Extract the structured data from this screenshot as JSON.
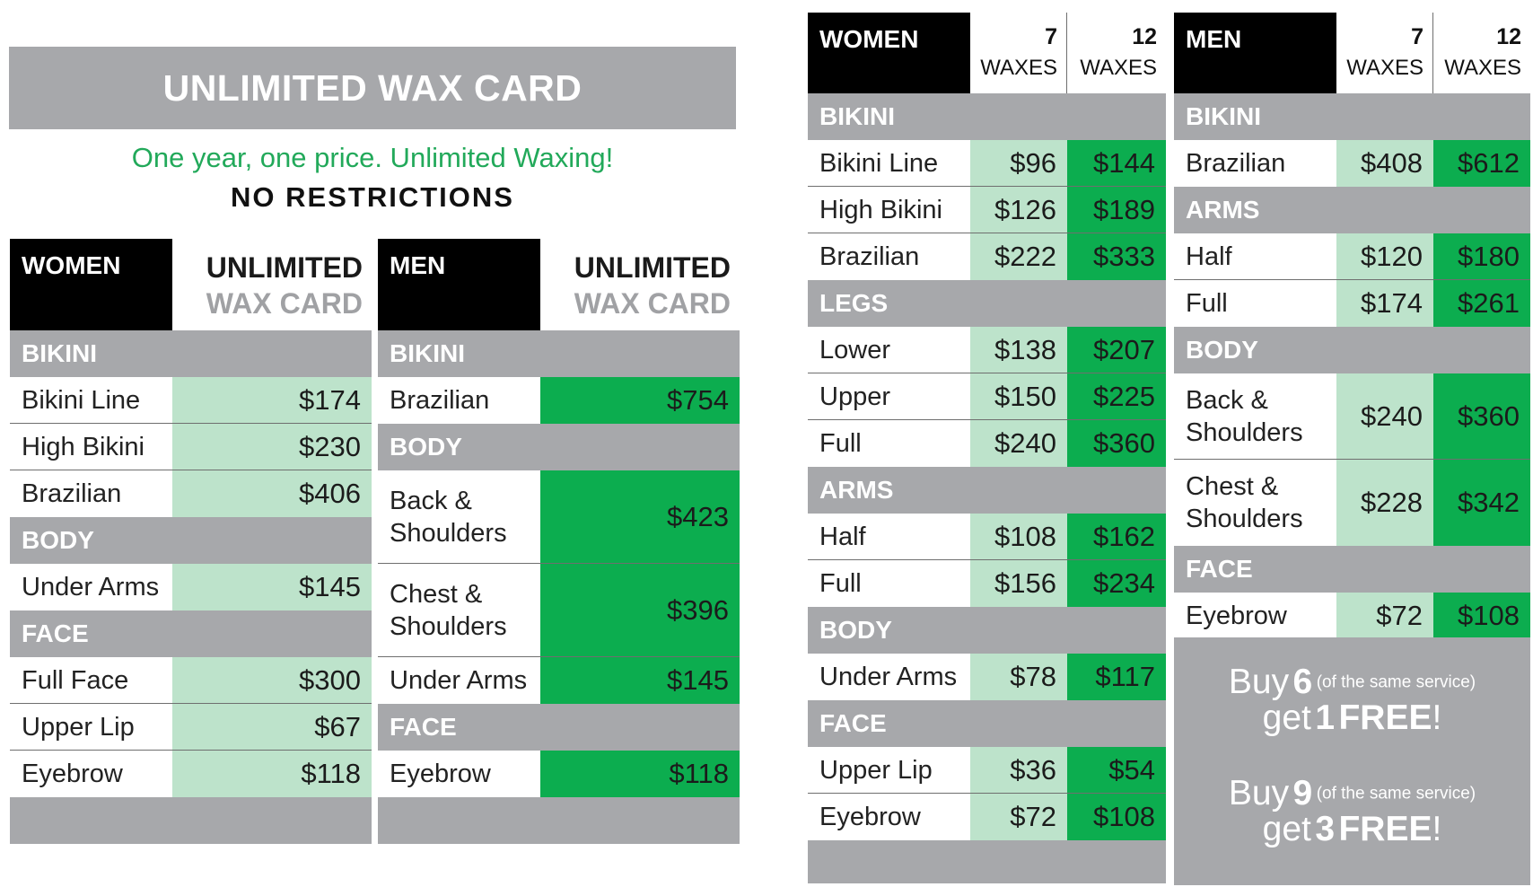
{
  "unlimited": {
    "banner": "UNLIMITED WAX CARD",
    "tagline": "One year, one price. Unlimited Waxing!",
    "no_restrictions": "NO RESTRICTIONS",
    "women": {
      "header": "WOMEN",
      "col_title_1": "UNLIMITED",
      "col_title_2": "WAX CARD",
      "sections": [
        {
          "name": "BIKINI",
          "items": [
            {
              "label": "Bikini Line",
              "price": "$174"
            },
            {
              "label": "High Bikini",
              "price": "$230"
            },
            {
              "label": "Brazilian",
              "price": "$406"
            }
          ]
        },
        {
          "name": "BODY",
          "items": [
            {
              "label": "Under Arms",
              "price": "$145"
            }
          ]
        },
        {
          "name": "FACE",
          "items": [
            {
              "label": "Full Face",
              "price": "$300"
            },
            {
              "label": "Upper Lip",
              "price": "$67"
            },
            {
              "label": "Eyebrow",
              "price": "$118"
            }
          ]
        }
      ]
    },
    "men": {
      "header": "MEN",
      "col_title_1": "UNLIMITED",
      "col_title_2": "WAX CARD",
      "sections": [
        {
          "name": "BIKINI",
          "items": [
            {
              "label": "Brazilian",
              "price": "$754"
            }
          ]
        },
        {
          "name": "BODY",
          "items": [
            {
              "label": "Back &",
              "label2": "Shoulders",
              "price": "$423"
            },
            {
              "label": "Chest &",
              "label2": "Shoulders",
              "price": "$396"
            },
            {
              "label": "Under Arms",
              "price": "$145"
            }
          ]
        },
        {
          "name": "FACE",
          "items": [
            {
              "label": "Eyebrow",
              "price": "$118"
            }
          ]
        }
      ]
    }
  },
  "packages": {
    "women": {
      "header": "WOMEN",
      "col1_num": "7",
      "col1_word": "WAXES",
      "col2_num": "12",
      "col2_word": "WAXES",
      "sections": [
        {
          "name": "BIKINI",
          "items": [
            {
              "label": "Bikini Line",
              "p7": "$96",
              "p12": "$144"
            },
            {
              "label": "High Bikini",
              "p7": "$126",
              "p12": "$189"
            },
            {
              "label": "Brazilian",
              "p7": "$222",
              "p12": "$333"
            }
          ]
        },
        {
          "name": "LEGS",
          "items": [
            {
              "label": "Lower",
              "p7": "$138",
              "p12": "$207"
            },
            {
              "label": "Upper",
              "p7": "$150",
              "p12": "$225"
            },
            {
              "label": "Full",
              "p7": "$240",
              "p12": "$360"
            }
          ]
        },
        {
          "name": "ARMS",
          "items": [
            {
              "label": "Half",
              "p7": "$108",
              "p12": "$162"
            },
            {
              "label": "Full",
              "p7": "$156",
              "p12": "$234"
            }
          ]
        },
        {
          "name": "BODY",
          "items": [
            {
              "label": "Under Arms",
              "p7": "$78",
              "p12": "$117"
            }
          ]
        },
        {
          "name": "FACE",
          "items": [
            {
              "label": "Upper Lip",
              "p7": "$36",
              "p12": "$54"
            },
            {
              "label": "Eyebrow",
              "p7": "$72",
              "p12": "$108"
            }
          ]
        }
      ]
    },
    "men": {
      "header": "MEN",
      "col1_num": "7",
      "col1_word": "WAXES",
      "col2_num": "12",
      "col2_word": "WAXES",
      "sections": [
        {
          "name": "BIKINI",
          "items": [
            {
              "label": "Brazilian",
              "p7": "$408",
              "p12": "$612"
            }
          ]
        },
        {
          "name": "ARMS",
          "items": [
            {
              "label": "Half",
              "p7": "$120",
              "p12": "$180"
            },
            {
              "label": "Full",
              "p7": "$174",
              "p12": "$261"
            }
          ]
        },
        {
          "name": "BODY",
          "items": [
            {
              "label": "Back &",
              "label2": "Shoulders",
              "p7": "$240",
              "p12": "$360"
            },
            {
              "label": "Chest &",
              "label2": "Shoulders",
              "p7": "$228",
              "p12": "$342"
            }
          ]
        },
        {
          "name": "FACE",
          "items": [
            {
              "label": "Eyebrow",
              "p7": "$72",
              "p12": "$108"
            }
          ]
        }
      ]
    },
    "promo": [
      {
        "buy": "Buy",
        "buy_num": "6",
        "note": "(of the same service)",
        "get": "get",
        "get_num": "1",
        "free": "FREE",
        "bang": "!"
      },
      {
        "buy": "Buy",
        "buy_num": "9",
        "note": "(of the same service)",
        "get": "get",
        "get_num": "3",
        "free": "FREE",
        "bang": "!"
      }
    ]
  },
  "colors": {
    "gray": "#a7a8ab",
    "light_green": "#bde3cb",
    "dark_green": "#0cad4f",
    "tagline_green": "#22a95a",
    "black": "#000000"
  }
}
